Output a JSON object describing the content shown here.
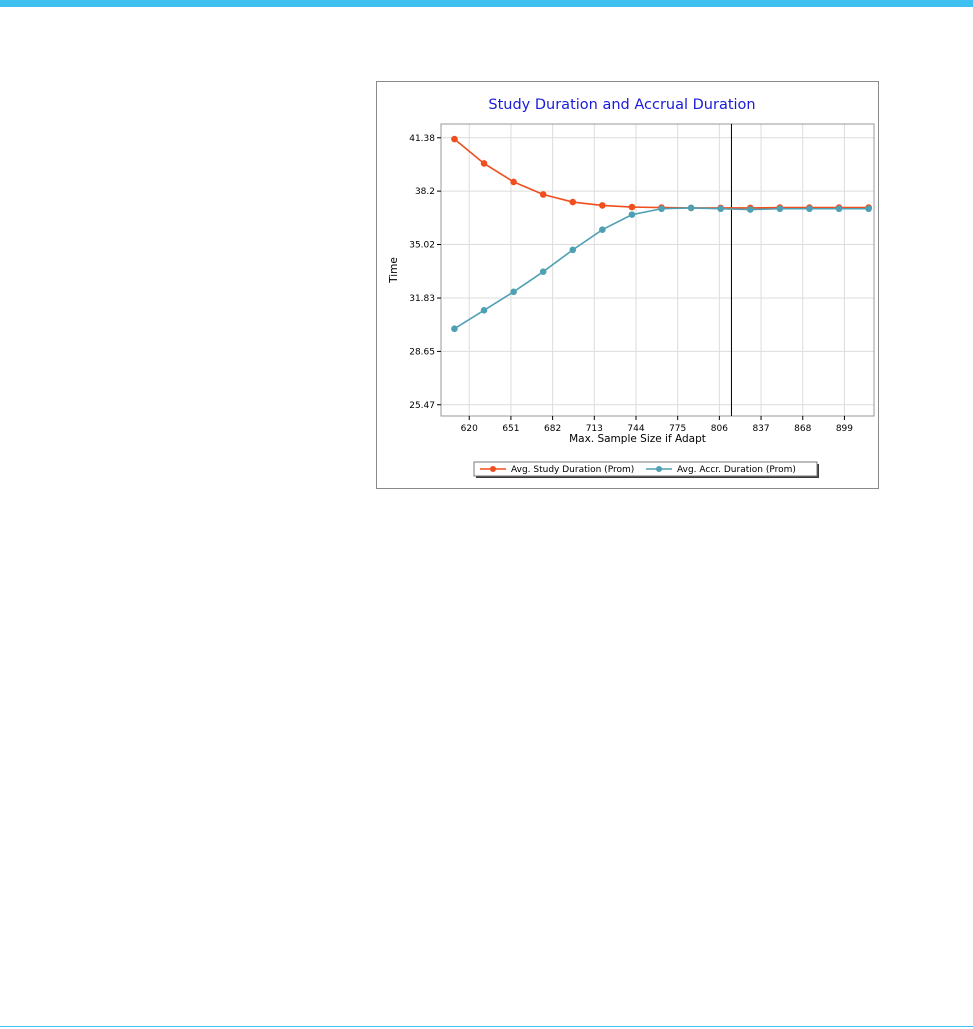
{
  "colors": {
    "accent_bar": "#3ec1f1",
    "study_series": "#f04e1e",
    "accrual_series": "#4ea1b4",
    "title": "#1a1adc",
    "grid": "#dcdcdc"
  },
  "chart_data": {
    "type": "line",
    "title": "Study Duration and Accrual Duration",
    "xlabel": "Max. Sample Size if Adapt",
    "ylabel": "Time",
    "xlim": [
      599,
      921
    ],
    "ylim": [
      24.8,
      42.2
    ],
    "x_ticks": [
      "620",
      "651",
      "682",
      "713",
      "744",
      "775",
      "806",
      "837",
      "868",
      "899"
    ],
    "y_ticks": [
      "41.38",
      "38.2",
      "35.02",
      "31.83",
      "28.65",
      "25.47"
    ],
    "grid": true,
    "legend_position": "bottom",
    "x": [
      609,
      631,
      653,
      675,
      697,
      719,
      741,
      763,
      785,
      807,
      829,
      851,
      873,
      895,
      917
    ],
    "series": [
      {
        "name": "Avg. Study Duration (Prom)",
        "values": [
          41.3,
          39.85,
          38.75,
          38.0,
          37.55,
          37.35,
          37.25,
          37.22,
          37.2,
          37.2,
          37.2,
          37.22,
          37.22,
          37.22,
          37.22
        ]
      },
      {
        "name": "Avg. Accr. Duration (Prom)",
        "values": [
          30.0,
          31.1,
          32.2,
          33.4,
          34.7,
          35.9,
          36.8,
          37.15,
          37.2,
          37.15,
          37.1,
          37.15,
          37.15,
          37.15,
          37.15
        ]
      }
    ],
    "vline_x": 815
  }
}
